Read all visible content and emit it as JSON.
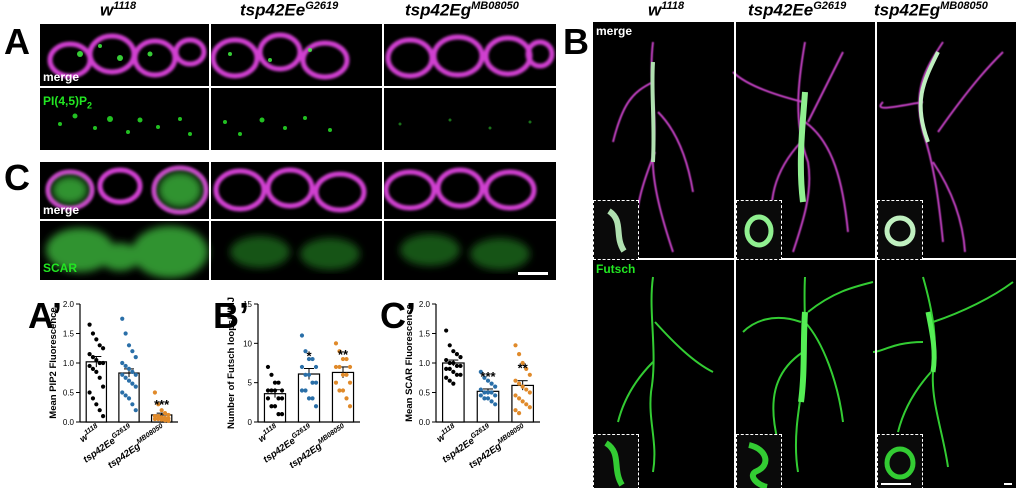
{
  "genotypes": {
    "wt": "w",
    "wt_sup": "1118",
    "e": "tsp42Ee",
    "e_sup": "G2619",
    "g": "tsp42Eg",
    "g_sup": "MB08050"
  },
  "panels": {
    "A": "A",
    "B": "B",
    "C": "C",
    "A_prime": "A’",
    "B_prime": "B’",
    "C_prime": "C’"
  },
  "image_labels": {
    "merge": "merge",
    "pip2": "PI(4,5)P",
    "pip2_sub": "2",
    "scar": "SCAR",
    "futsch": "Futsch"
  },
  "colors": {
    "magenta": "#d040d0",
    "green": "#22e622",
    "wt_points": "#000000",
    "e_points": "#2a6fa8",
    "g_points": "#e08a2a"
  },
  "chart_data": [
    {
      "type": "scatter",
      "ylabel": "Mean PIP2 Fluorescence",
      "ylim": [
        0,
        2.0
      ],
      "yticks": [
        "0.0",
        "0.5",
        "1.0",
        "1.5",
        "2.0"
      ],
      "categories": [
        "w1118",
        "tsp42EeG2619",
        "tsp42EgMB08050"
      ],
      "means": [
        1.02,
        0.83,
        0.12
      ],
      "sem": [
        0.09,
        0.07,
        0.03
      ],
      "significance": [
        "",
        "",
        "***"
      ],
      "series": [
        {
          "values": [
            1.65,
            1.5,
            1.4,
            1.3,
            1.25,
            1.15,
            1.1,
            1.05,
            1.0,
            1.0,
            0.95,
            0.9,
            0.85,
            0.75,
            0.6,
            0.5,
            0.4,
            0.3,
            0.2,
            0.1
          ]
        },
        {
          "values": [
            1.75,
            1.5,
            1.3,
            1.2,
            1.1,
            1.0,
            0.95,
            0.9,
            0.85,
            0.8,
            0.8,
            0.75,
            0.7,
            0.65,
            0.6,
            0.5,
            0.45,
            0.4,
            0.3,
            0.2
          ]
        },
        {
          "values": [
            0.5,
            0.3,
            0.2,
            0.15,
            0.12,
            0.1,
            0.1,
            0.08,
            0.07,
            0.06,
            0.05,
            0.05,
            0.04,
            0.03,
            0.02
          ]
        }
      ]
    },
    {
      "type": "scatter",
      "ylabel": "Number of Futsch loops/NMJ",
      "ylim": [
        0,
        15
      ],
      "yticks": [
        "0",
        "5",
        "10",
        "15"
      ],
      "categories": [
        "w1118",
        "tsp42EeG2619",
        "tsp42EgMB08050"
      ],
      "means": [
        3.6,
        6.1,
        6.3
      ],
      "sem": [
        0.5,
        0.7,
        0.7
      ],
      "significance": [
        "",
        "*",
        "**"
      ],
      "series": [
        {
          "values": [
            7,
            6,
            5,
            5,
            4,
            4,
            4,
            4,
            3,
            3,
            3,
            2,
            2,
            1,
            1
          ]
        },
        {
          "values": [
            11,
            9,
            8,
            8,
            7,
            7,
            6,
            6,
            5,
            5,
            4,
            4,
            3,
            3,
            2
          ]
        },
        {
          "values": [
            10,
            9,
            8,
            8,
            7,
            7,
            7,
            6,
            6,
            5,
            5,
            4,
            4,
            3,
            2
          ]
        }
      ]
    },
    {
      "type": "scatter",
      "ylabel": "Mean SCAR Fluorescence",
      "ylim": [
        0,
        2.0
      ],
      "yticks": [
        "0.0",
        "0.5",
        "1.0",
        "1.5",
        "2.0"
      ],
      "categories": [
        "w1118",
        "tsp42EeG2619",
        "tsp42EgMB08050"
      ],
      "means": [
        1.0,
        0.52,
        0.62
      ],
      "sem": [
        0.05,
        0.04,
        0.08
      ],
      "significance": [
        "",
        "***",
        "**"
      ],
      "series": [
        {
          "values": [
            1.55,
            1.3,
            1.2,
            1.15,
            1.1,
            1.05,
            1.0,
            1.0,
            0.95,
            0.95,
            0.9,
            0.9,
            0.85,
            0.8,
            0.8,
            0.75,
            0.7,
            0.65
          ]
        },
        {
          "values": [
            0.85,
            0.75,
            0.7,
            0.65,
            0.6,
            0.55,
            0.5,
            0.5,
            0.5,
            0.45,
            0.45,
            0.4,
            0.4,
            0.35,
            0.3
          ]
        },
        {
          "values": [
            1.3,
            1.15,
            1.0,
            0.9,
            0.8,
            0.7,
            0.65,
            0.6,
            0.55,
            0.5,
            0.45,
            0.4,
            0.35,
            0.3,
            0.25,
            0.2,
            0.15
          ]
        }
      ]
    }
  ]
}
